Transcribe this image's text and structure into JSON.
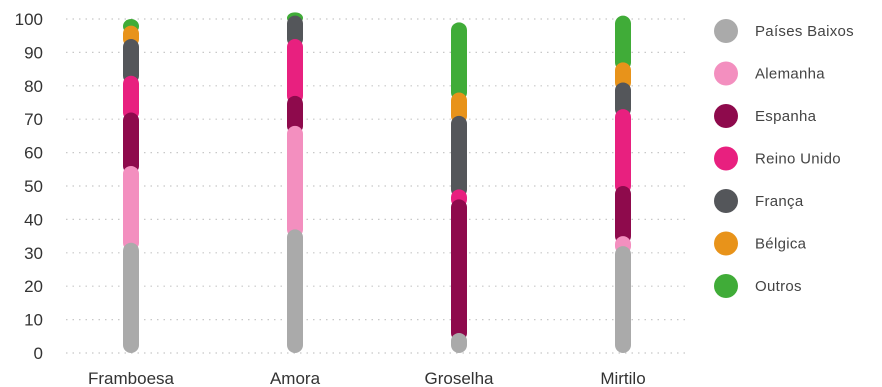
{
  "chart_data": {
    "type": "bar",
    "stacked": true,
    "categories": [
      "Framboesa",
      "Amora",
      "Groselha",
      "Mirtilo"
    ],
    "ylim": [
      0,
      100
    ],
    "yticks": [
      0,
      10,
      20,
      30,
      40,
      50,
      60,
      70,
      80,
      90,
      100
    ],
    "grid": true,
    "legend_position": "right",
    "title": "",
    "xlabel": "",
    "ylabel": "",
    "series": [
      {
        "name": "Países Baixos",
        "color": "#aaaaaa",
        "values": [
          33,
          37,
          6,
          32
        ]
      },
      {
        "name": "Alemanha",
        "color": "#f38fbf",
        "values": [
          23,
          31,
          0,
          3
        ]
      },
      {
        "name": "Espanha",
        "color": "#8e0a4c",
        "values": [
          16,
          9,
          40,
          15
        ]
      },
      {
        "name": "Reino Unido",
        "color": "#e8207f",
        "values": [
          11,
          17,
          3,
          23
        ]
      },
      {
        "name": "França",
        "color": "#54565a",
        "values": [
          11,
          7,
          22,
          8
        ]
      },
      {
        "name": "Bélgica",
        "color": "#e8931a",
        "values": [
          4,
          0,
          7,
          6
        ]
      },
      {
        "name": "Outros",
        "color": "#40ac38",
        "values": [
          2,
          1,
          21,
          14
        ]
      }
    ]
  }
}
